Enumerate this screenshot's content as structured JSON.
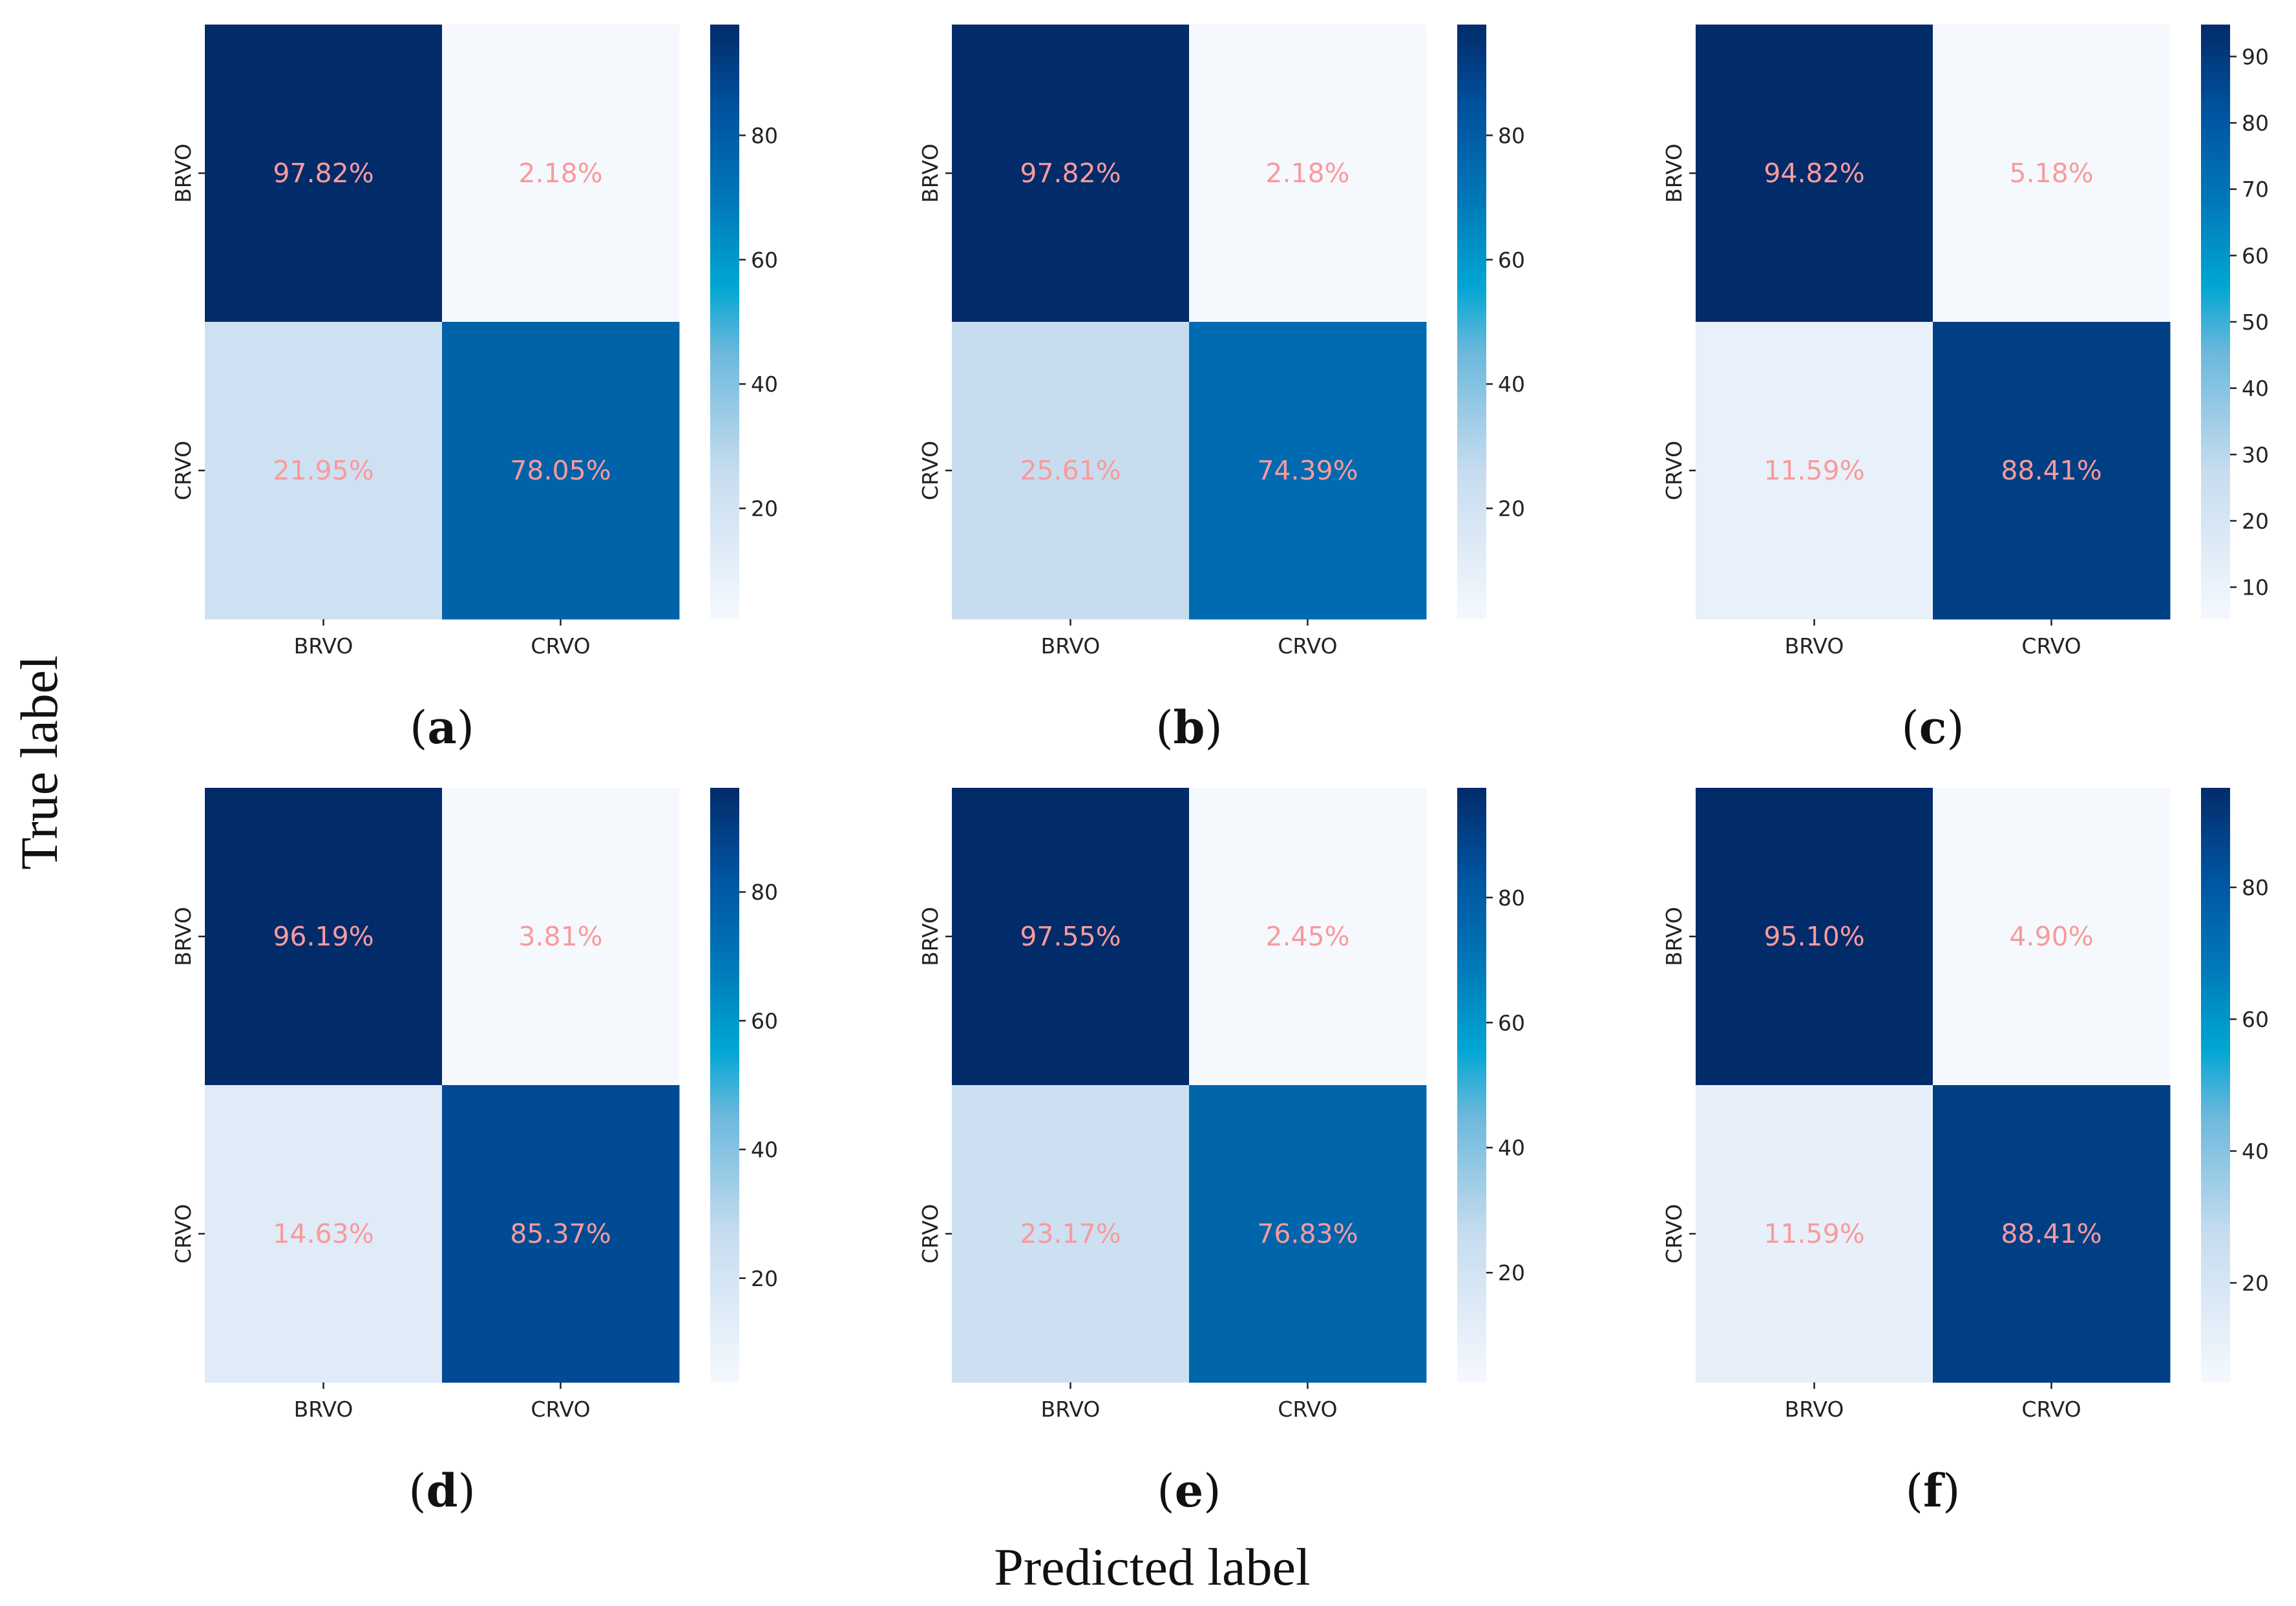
{
  "chart_data": {
    "type": "heatmap",
    "xlabel": "Predicted label",
    "ylabel": "True label",
    "colormap": "Blues",
    "annotation_color": "#f99a9c",
    "panels": [
      {
        "label": "a",
        "row_labels": [
          "BRVO",
          "CRVO"
        ],
        "col_labels": [
          "BRVO",
          "CRVO"
        ],
        "values": [
          [
            97.82,
            2.18
          ],
          [
            21.95,
            78.05
          ]
        ],
        "annotations": [
          [
            "97.82%",
            "2.18%"
          ],
          [
            "21.95%",
            "78.05%"
          ]
        ],
        "colorbar_ticks": [
          20,
          40,
          60,
          80
        ]
      },
      {
        "label": "b",
        "row_labels": [
          "BRVO",
          "CRVO"
        ],
        "col_labels": [
          "BRVO",
          "CRVO"
        ],
        "values": [
          [
            97.82,
            2.18
          ],
          [
            25.61,
            74.39
          ]
        ],
        "annotations": [
          [
            "97.82%",
            "2.18%"
          ],
          [
            "25.61%",
            "74.39%"
          ]
        ],
        "colorbar_ticks": [
          20,
          40,
          60,
          80
        ]
      },
      {
        "label": "c",
        "row_labels": [
          "BRVO",
          "CRVO"
        ],
        "col_labels": [
          "BRVO",
          "CRVO"
        ],
        "values": [
          [
            94.82,
            5.18
          ],
          [
            11.59,
            88.41
          ]
        ],
        "annotations": [
          [
            "94.82%",
            "5.18%"
          ],
          [
            "11.59%",
            "88.41%"
          ]
        ],
        "colorbar_ticks": [
          10,
          20,
          30,
          40,
          50,
          60,
          70,
          80,
          90
        ]
      },
      {
        "label": "d",
        "row_labels": [
          "BRVO",
          "CRVO"
        ],
        "col_labels": [
          "BRVO",
          "CRVO"
        ],
        "values": [
          [
            96.19,
            3.81
          ],
          [
            14.63,
            85.37
          ]
        ],
        "annotations": [
          [
            "96.19%",
            "3.81%"
          ],
          [
            "14.63%",
            "85.37%"
          ]
        ],
        "colorbar_ticks": [
          20,
          40,
          60,
          80
        ]
      },
      {
        "label": "e",
        "row_labels": [
          "BRVO",
          "CRVO"
        ],
        "col_labels": [
          "BRVO",
          "CRVO"
        ],
        "values": [
          [
            97.55,
            2.45
          ],
          [
            23.17,
            76.83
          ]
        ],
        "annotations": [
          [
            "97.55%",
            "2.45%"
          ],
          [
            "23.17%",
            "76.83%"
          ]
        ],
        "colorbar_ticks": [
          20,
          40,
          60,
          80
        ]
      },
      {
        "label": "f",
        "row_labels": [
          "BRVO",
          "CRVO"
        ],
        "col_labels": [
          "BRVO",
          "CRVO"
        ],
        "values": [
          [
            95.1,
            4.9
          ],
          [
            11.59,
            88.41
          ]
        ],
        "annotations": [
          [
            "95.10%",
            "4.90%"
          ],
          [
            "11.59%",
            "88.41%"
          ]
        ],
        "colorbar_ticks": [
          20,
          40,
          60,
          80
        ]
      }
    ]
  }
}
